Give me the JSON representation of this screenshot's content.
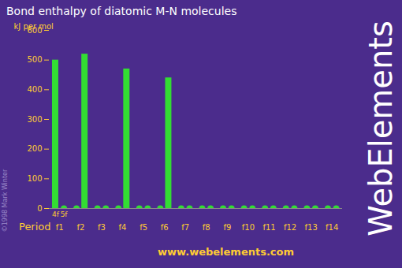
{
  "chart_data": {
    "type": "bar",
    "title": "Bond enthalpy of diatomic M-N molecules",
    "y_label": "kJ per mol",
    "legend_title": "Period",
    "caption": "www.webelements.com",
    "watermark": "WebElements",
    "copyright": "©1998 Mark Winter",
    "categories": [
      "f1",
      "f2",
      "f3",
      "f4",
      "f5",
      "f6",
      "f7",
      "f8",
      "f9",
      "f10",
      "f11",
      "f12",
      "f13",
      "f14"
    ],
    "series": [
      {
        "name": "4f",
        "color": "#33dd33",
        "values": [
          500,
          null,
          null,
          null,
          null,
          null,
          null,
          null,
          null,
          null,
          null,
          null,
          null,
          null
        ]
      },
      {
        "name": "5f",
        "color": "#33dd33",
        "values": [
          null,
          520,
          null,
          470,
          null,
          440,
          null,
          null,
          null,
          null,
          null,
          null,
          null,
          null
        ]
      }
    ],
    "ylim": [
      0,
      600
    ],
    "yticks": [
      0,
      100,
      200,
      300,
      400,
      500,
      600
    ],
    "grid": false
  }
}
